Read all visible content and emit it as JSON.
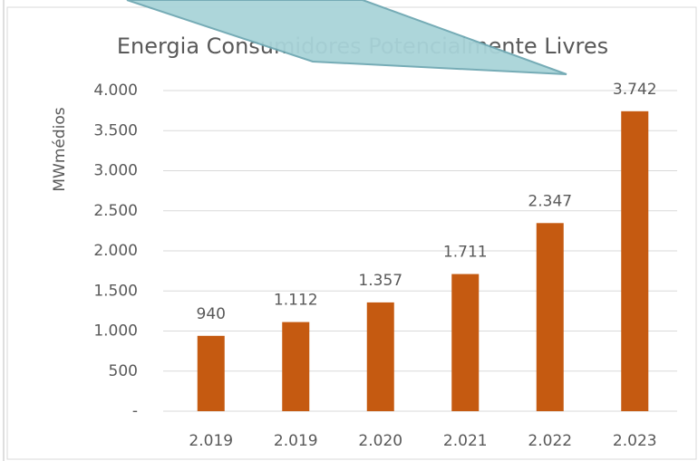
{
  "chart_data": {
    "type": "bar",
    "title": "Energia Consumidores Potencialmente Livres",
    "y_label": "MWmédios",
    "categories": [
      "2.019",
      "2.019",
      "2.020",
      "2.021",
      "2.022",
      "2.023"
    ],
    "values": [
      940,
      1112,
      1357,
      1711,
      2347,
      3742
    ],
    "value_labels": [
      "940",
      "1.112",
      "1.357",
      "1.711",
      "2.347",
      "3.742"
    ],
    "color": "#c55a11",
    "ylim": [
      0,
      4000
    ],
    "yticks": [
      {
        "value": 0,
        "label": "-"
      },
      500,
      {
        "value": 1000,
        "label": "1.000"
      },
      {
        "value": 1500,
        "label": "1.500"
      },
      {
        "value": 2000,
        "label": "2.000"
      },
      {
        "value": 2500,
        "label": "2.500"
      },
      {
        "value": 3000,
        "label": "3.000"
      },
      {
        "value": 3500,
        "label": "3.500"
      },
      {
        "value": 4000,
        "label": "4.000"
      }
    ],
    "grid": true
  }
}
